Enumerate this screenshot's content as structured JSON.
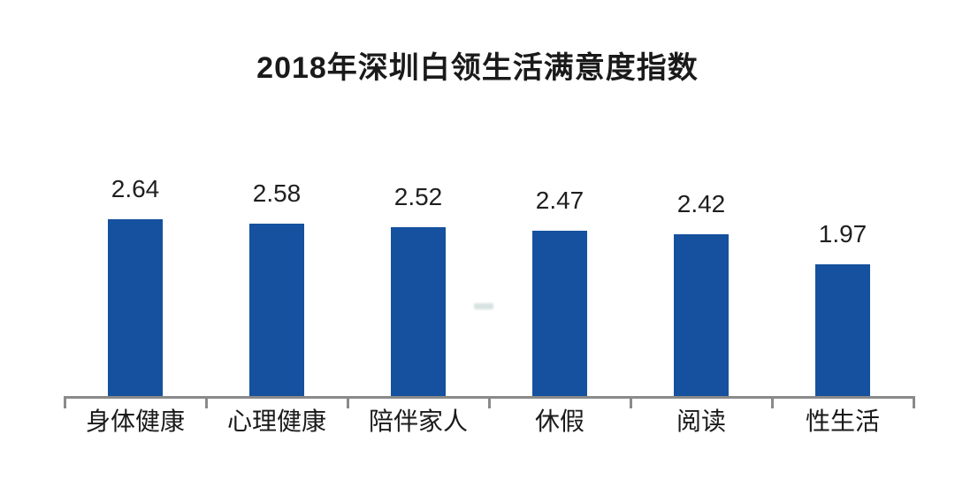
{
  "page": {
    "background_color": "#ffffff"
  },
  "chart_data": {
    "type": "bar",
    "title": "2018年深圳白领生活满意度指数",
    "categories": [
      "身体健康",
      "心理健康",
      "陪伴家人",
      "休假",
      "阅读",
      "性生活"
    ],
    "values": [
      2.64,
      2.58,
      2.52,
      2.47,
      2.42,
      1.97
    ],
    "value_labels": [
      "2.64",
      "2.58",
      "2.52",
      "2.47",
      "2.42",
      "1.97"
    ],
    "xlabel": "",
    "ylabel": "",
    "ylim": [
      0,
      2.8
    ],
    "grid": false,
    "legend": false,
    "y_axis_visible": false,
    "bar_color": "#15519E",
    "axis_color": "#8A8A8A",
    "title_color": "#1A1A1A",
    "label_color": "#1F1F1F"
  },
  "artifact": {
    "smudge_color": "#B9CBCA"
  }
}
